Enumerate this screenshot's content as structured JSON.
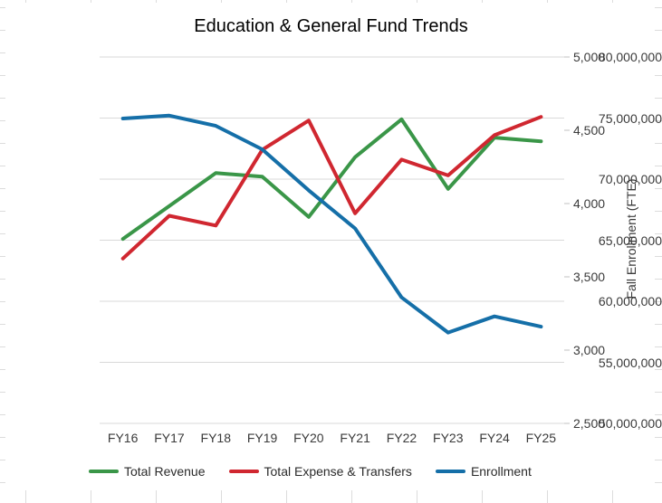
{
  "window": {
    "title": "Education & General Fund Trends"
  },
  "chart_data": {
    "type": "line",
    "title": "Education & General Fund Trends",
    "categories": [
      "FY16",
      "FY17",
      "FY18",
      "FY19",
      "FY20",
      "FY21",
      "FY22",
      "FY23",
      "FY24",
      "FY25"
    ],
    "series": [
      {
        "name": "Total Revenue",
        "axis": "left",
        "color": "#3a9648",
        "values": [
          65100000,
          67800000,
          70500000,
          70200000,
          66900000,
          71800000,
          74900000,
          69200000,
          73400000,
          73100000
        ]
      },
      {
        "name": "Total Expense & Transfers",
        "axis": "left",
        "color": "#d02730",
        "values": [
          63500000,
          67000000,
          66200000,
          72400000,
          74800000,
          67200000,
          71600000,
          70300000,
          73600000,
          75100000
        ]
      },
      {
        "name": "Enrollment",
        "axis": "right",
        "color": "#156fa8",
        "values": [
          4580,
          4600,
          4530,
          4370,
          4090,
          3830,
          3360,
          3120,
          3230,
          3160
        ]
      }
    ],
    "axes": {
      "left": {
        "min": 50000000,
        "max": 80000000,
        "step": 5000000,
        "tick_labels": [
          "50,000,000",
          "55,000,000",
          "60,000,000",
          "65,000,000",
          "70,000,000",
          "75,000,000",
          "80,000,000"
        ]
      },
      "right": {
        "min": 2500,
        "max": 5000,
        "step": 500,
        "title": "Fall Enrollment (FTE)",
        "tick_labels": [
          "2,500",
          "3,000",
          "3,500",
          "4,000",
          "4,500",
          "5,000"
        ]
      }
    },
    "grid": true,
    "gridline_color": "#d9d9d9",
    "legend_position": "bottom"
  }
}
